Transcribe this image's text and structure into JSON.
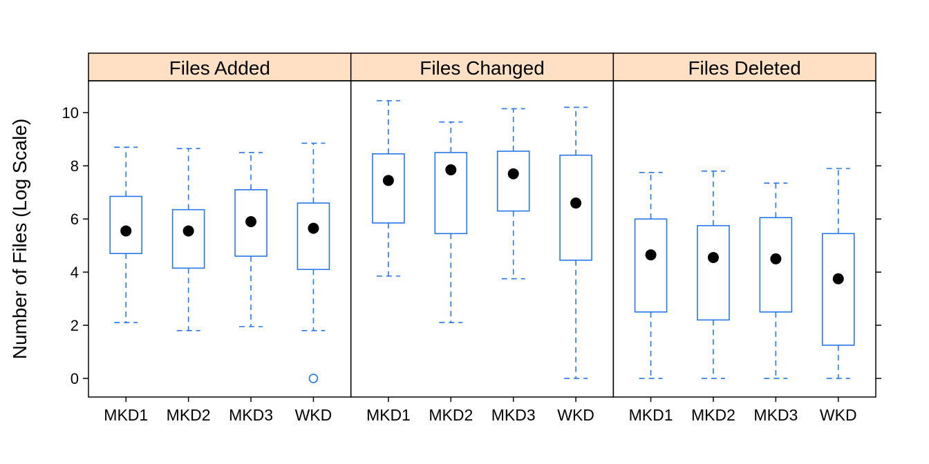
{
  "chart_data": {
    "type": "boxplot",
    "ylabel": "Number of Files (Log Scale)",
    "ylim": [
      -0.7,
      11.2
    ],
    "yticks": [
      0,
      2,
      4,
      6,
      8,
      10
    ],
    "categories": [
      "MKD1",
      "MKD2",
      "MKD3",
      "WKD"
    ],
    "panels": [
      {
        "title": "Files Added",
        "boxes": [
          {
            "category": "MKD1",
            "whisker_low": 2.1,
            "q1": 4.7,
            "median": 5.55,
            "q3": 6.85,
            "whisker_high": 8.7,
            "outliers": []
          },
          {
            "category": "MKD2",
            "whisker_low": 1.8,
            "q1": 4.15,
            "median": 5.55,
            "q3": 6.35,
            "whisker_high": 8.65,
            "outliers": []
          },
          {
            "category": "MKD3",
            "whisker_low": 1.95,
            "q1": 4.6,
            "median": 5.9,
            "q3": 7.1,
            "whisker_high": 8.5,
            "outliers": []
          },
          {
            "category": "WKD",
            "whisker_low": 1.8,
            "q1": 4.1,
            "median": 5.65,
            "q3": 6.6,
            "whisker_high": 8.85,
            "outliers": [
              0
            ]
          }
        ]
      },
      {
        "title": "Files Changed",
        "boxes": [
          {
            "category": "MKD1",
            "whisker_low": 3.85,
            "q1": 5.85,
            "median": 7.45,
            "q3": 8.45,
            "whisker_high": 10.45,
            "outliers": []
          },
          {
            "category": "MKD2",
            "whisker_low": 2.1,
            "q1": 5.45,
            "median": 7.85,
            "q3": 8.5,
            "whisker_high": 9.65,
            "outliers": []
          },
          {
            "category": "MKD3",
            "whisker_low": 3.75,
            "q1": 6.3,
            "median": 7.7,
            "q3": 8.55,
            "whisker_high": 10.15,
            "outliers": []
          },
          {
            "category": "WKD",
            "whisker_low": 0.0,
            "q1": 4.45,
            "median": 6.6,
            "q3": 8.4,
            "whisker_high": 10.2,
            "outliers": []
          }
        ]
      },
      {
        "title": "Files Deleted",
        "boxes": [
          {
            "category": "MKD1",
            "whisker_low": 0.0,
            "q1": 2.5,
            "median": 4.65,
            "q3": 6.0,
            "whisker_high": 7.75,
            "outliers": []
          },
          {
            "category": "MKD2",
            "whisker_low": 0.0,
            "q1": 2.2,
            "median": 4.55,
            "q3": 5.75,
            "whisker_high": 7.8,
            "outliers": []
          },
          {
            "category": "MKD3",
            "whisker_low": 0.0,
            "q1": 2.5,
            "median": 4.5,
            "q3": 6.05,
            "whisker_high": 7.35,
            "outliers": []
          },
          {
            "category": "WKD",
            "whisker_low": 0.0,
            "q1": 1.25,
            "median": 3.75,
            "q3": 5.45,
            "whisker_high": 7.9,
            "outliers": []
          }
        ]
      }
    ],
    "grid": false,
    "legend": "none",
    "colors": {
      "box": "#2576e8",
      "median_dot": "#000000",
      "strip": "#ffe0c4",
      "frame": "#000000"
    }
  }
}
